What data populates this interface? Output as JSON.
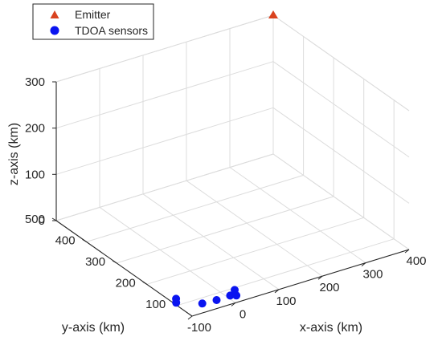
{
  "chart_data": {
    "type": "scatter",
    "projection": "3d",
    "title": "",
    "xlabel": "x-axis (km)",
    "ylabel": "y-axis (km)",
    "zlabel": "z-axis (km)",
    "xlim": [
      -100,
      400
    ],
    "ylim": [
      50,
      500
    ],
    "zlim": [
      0,
      300
    ],
    "xticks": [
      -100,
      0,
      100,
      200,
      300,
      400
    ],
    "yticks": [
      100,
      200,
      300,
      400,
      500
    ],
    "zticks": [
      0,
      100,
      200,
      300
    ],
    "xtick_labels": [
      "-100",
      "0",
      "100",
      "200",
      "300",
      "400"
    ],
    "ytick_labels": [
      "100",
      "200",
      "300",
      "400",
      "500"
    ],
    "ztick_labels": [
      "0",
      "100",
      "200",
      "300"
    ],
    "grid": true,
    "legend_position": "top-left",
    "series": [
      {
        "name": "Emitter",
        "marker": "triangle",
        "color": "#d9421f",
        "points": [
          {
            "x": 400,
            "y": 500,
            "z": 300
          }
        ]
      },
      {
        "name": "TDOA sensors",
        "marker": "circle",
        "color": "#0a14f0",
        "points": [
          {
            "x": -95,
            "y": 110,
            "z": 0
          },
          {
            "x": -86,
            "y": 123,
            "z": 0
          },
          {
            "x": -55,
            "y": 81,
            "z": 0
          },
          {
            "x": -24,
            "y": 78,
            "z": 0
          },
          {
            "x": 8,
            "y": 79,
            "z": 0
          },
          {
            "x": 18,
            "y": 73,
            "z": 0
          },
          {
            "x": 28,
            "y": 93,
            "z": 0
          }
        ]
      }
    ]
  },
  "colors": {
    "axis": "#262626",
    "grid": "#dcdcdc",
    "background": "#ffffff"
  }
}
